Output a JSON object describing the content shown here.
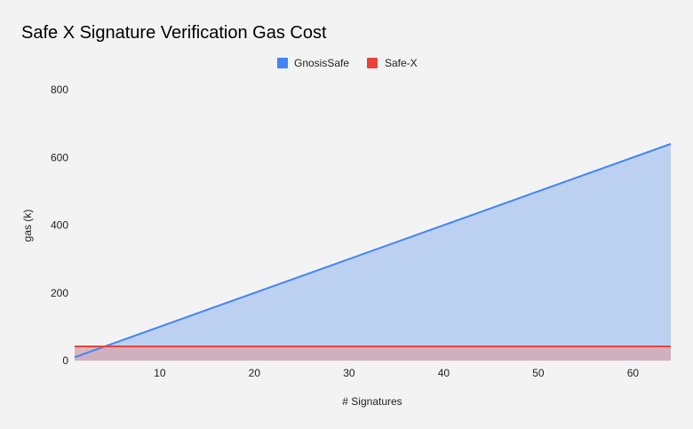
{
  "chart_data": {
    "type": "area",
    "title": "Safe X Signature Verification Gas Cost",
    "xlabel": "# Signatures",
    "ylabel": "gas (k)",
    "xlim": [
      1,
      64
    ],
    "ylim": [
      0,
      800
    ],
    "x_ticks": [
      10,
      20,
      30,
      40,
      50,
      60
    ],
    "y_ticks": [
      0,
      200,
      400,
      600,
      800
    ],
    "grid": false,
    "legend_position": "top",
    "series": [
      {
        "name": "GnosisSafe",
        "color": "#4285f4",
        "fill": "#bcd1f2",
        "x": [
          1,
          64
        ],
        "values": [
          10,
          640
        ]
      },
      {
        "name": "Safe-X",
        "color": "#ea4335",
        "fill": "#d4a9b5",
        "x": [
          1,
          64
        ],
        "values": [
          42,
          42
        ]
      }
    ]
  }
}
